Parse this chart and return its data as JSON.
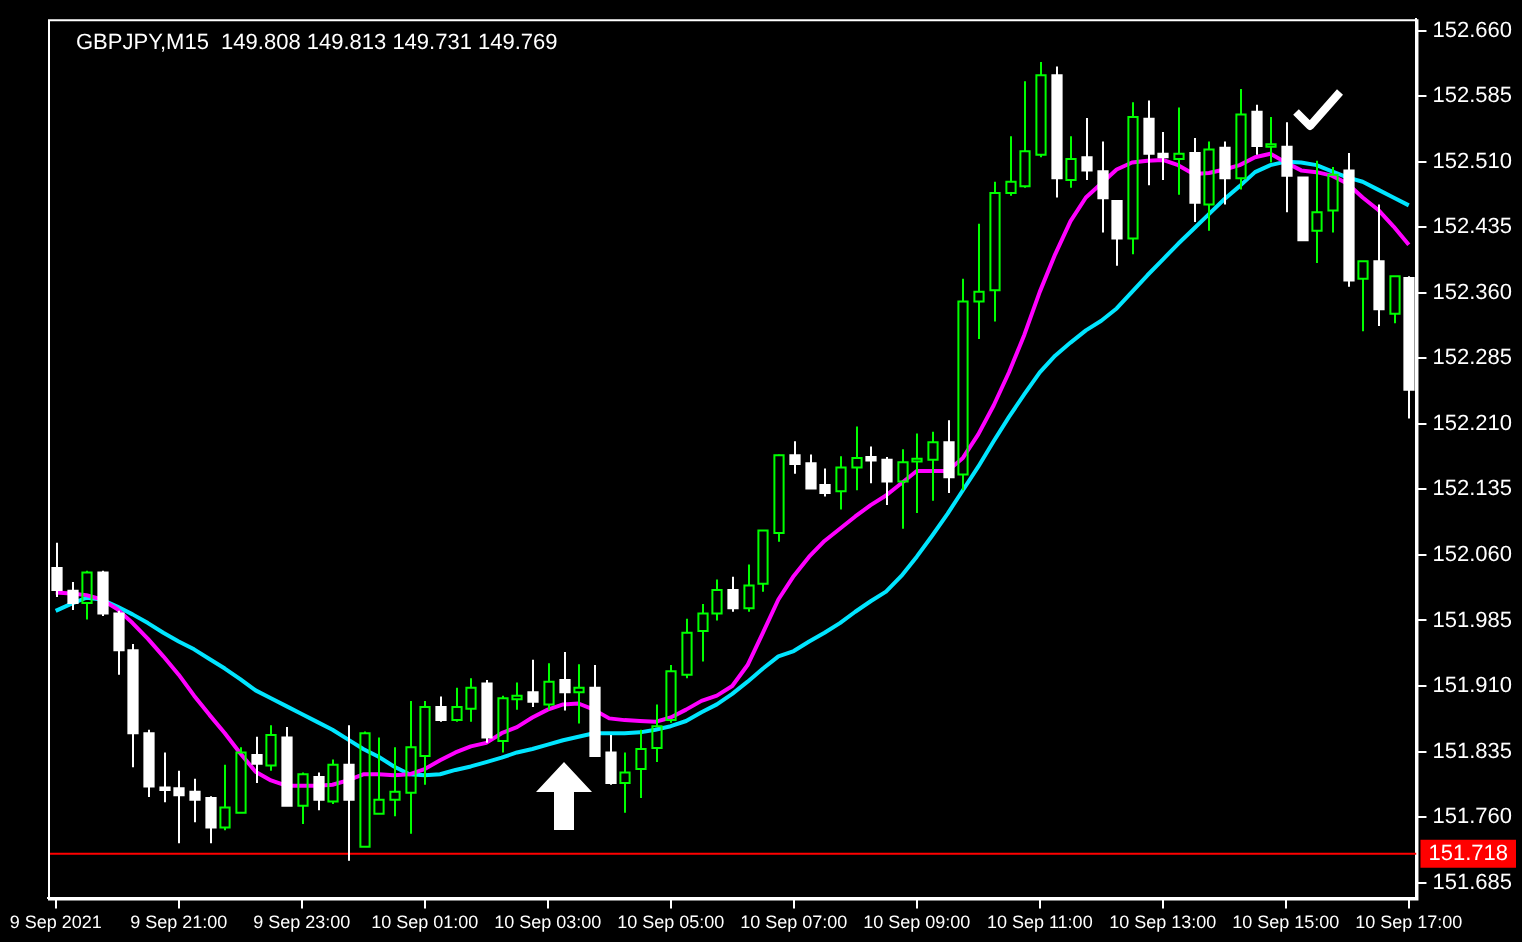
{
  "chart_data": {
    "type": "candlestick",
    "title": "GBPJPY,M15  149.808 149.813 149.731 149.769",
    "colors": [
      "#ffffff",
      "#ffffff",
      "#00ff00",
      "#ffffff",
      "#ffffff",
      "#ffffff",
      "#ffffff",
      "#ffffff",
      "#ffffff",
      "#ffffff",
      "#ffffff",
      "#00ff00",
      "#00ff00",
      "#ffffff",
      "#00ff00",
      "#ffffff",
      "#00ff00",
      "#ffffff",
      "#00ff00",
      "#ffffff",
      "#00ff00",
      "#00ff00",
      "#00ff00",
      "#00ff00",
      "#00ff00",
      "#ffffff",
      "#00ff00",
      "#00ff00",
      "#ffffff",
      "#00ff00",
      "#00ff00",
      "#ffffff",
      "#00ff00",
      "#ffffff",
      "#00ff00",
      "#ffffff",
      "#ffffff",
      "#00ff00",
      "#00ff00",
      "#00ff00",
      "#00ff00",
      "#00ff00",
      "#00ff00",
      "#00ff00",
      "#ffffff",
      "#00ff00",
      "#00ff00",
      "#00ff00",
      "#ffffff",
      "#ffffff",
      "#ffffff",
      "#00ff00",
      "#00ff00",
      "#ffffff",
      "#ffffff",
      "#00ff00",
      "#00ff00",
      "#00ff00",
      "#ffffff",
      "#00ff00",
      "#00ff00",
      "#00ff00",
      "#00ff00",
      "#00ff00",
      "#00ff00",
      "#ffffff",
      "#00ff00",
      "#ffffff",
      "#ffffff",
      "#ffffff",
      "#00ff00",
      "#ffffff",
      "#ffffff",
      "#00ff00",
      "#ffffff",
      "#00ff00",
      "#ffffff",
      "#00ff00",
      "#ffffff",
      "#00ff00",
      "#ffffff",
      "#ffffff",
      "#00ff00",
      "#00ff00",
      "#ffffff",
      "#00ff00",
      "#ffffff",
      "#00ff00",
      "#ffffff"
    ],
    "categories": [
      "9 Sep 2021",
      null,
      null,
      null,
      null,
      null,
      null,
      null,
      "9 Sep 21:00",
      null,
      null,
      null,
      null,
      null,
      null,
      null,
      "9 Sep 23:00",
      null,
      null,
      null,
      null,
      null,
      null,
      null,
      "10 Sep 01:00",
      null,
      null,
      null,
      null,
      null,
      null,
      null,
      "10 Sep 03:00",
      null,
      null,
      null,
      null,
      null,
      null,
      null,
      "10 Sep 05:00",
      null,
      null,
      null,
      null,
      null,
      null,
      null,
      "10 Sep 07:00",
      null,
      null,
      null,
      null,
      null,
      null,
      null,
      "10 Sep 09:00",
      null,
      null,
      null,
      null,
      null,
      null,
      null,
      "10 Sep 11:00",
      null,
      null,
      null,
      null,
      null,
      null,
      null,
      "10 Sep 13:00",
      null,
      null,
      null,
      null,
      null,
      null,
      null,
      "10 Sep 15:00",
      null,
      null,
      null,
      null,
      null,
      null,
      null,
      "10 Sep 17:00"
    ],
    "ohlc": [
      [
        152.045,
        152.074,
        152.012,
        152.02
      ],
      [
        152.019,
        152.029,
        151.997,
        152.005
      ],
      [
        152.005,
        152.042,
        151.986,
        152.04
      ],
      [
        152.04,
        152.042,
        151.99,
        151.993
      ],
      [
        151.993,
        151.996,
        151.923,
        151.951
      ],
      [
        151.951,
        151.958,
        151.817,
        151.856
      ],
      [
        151.856,
        151.86,
        151.783,
        151.795
      ],
      [
        151.794,
        151.834,
        151.777,
        151.791
      ],
      [
        151.793,
        151.813,
        151.73,
        151.785
      ],
      [
        151.789,
        151.804,
        151.754,
        151.78
      ],
      [
        151.782,
        151.784,
        151.73,
        151.748
      ],
      [
        151.748,
        151.82,
        151.745,
        151.771
      ],
      [
        151.765,
        151.84,
        151.765,
        151.834
      ],
      [
        151.831,
        151.852,
        151.799,
        151.821
      ],
      [
        151.819,
        151.865,
        151.813,
        151.854
      ],
      [
        151.851,
        151.863,
        151.773,
        151.773
      ],
      [
        151.773,
        151.811,
        151.752,
        151.809
      ],
      [
        151.806,
        151.811,
        151.768,
        151.78
      ],
      [
        151.778,
        151.826,
        151.775,
        151.82
      ],
      [
        151.82,
        151.865,
        151.71,
        151.78
      ],
      [
        151.726,
        151.858,
        151.726,
        151.856
      ],
      [
        151.764,
        151.851,
        151.764,
        151.78
      ],
      [
        151.78,
        151.84,
        151.761,
        151.789
      ],
      [
        151.788,
        151.893,
        151.741,
        151.84
      ],
      [
        151.83,
        151.893,
        151.797,
        151.886
      ],
      [
        151.886,
        151.898,
        151.869,
        151.871
      ],
      [
        151.871,
        151.908,
        151.869,
        151.886
      ],
      [
        151.884,
        151.919,
        151.869,
        151.908
      ],
      [
        151.913,
        151.917,
        151.845,
        151.851
      ],
      [
        151.847,
        151.899,
        151.834,
        151.896
      ],
      [
        151.895,
        151.914,
        151.883,
        151.899
      ],
      [
        151.903,
        151.94,
        151.886,
        151.892
      ],
      [
        151.889,
        151.936,
        151.883,
        151.915
      ],
      [
        151.917,
        151.949,
        151.882,
        151.903
      ],
      [
        151.903,
        151.935,
        151.867,
        151.908
      ],
      [
        151.908,
        151.934,
        151.83,
        151.83
      ],
      [
        151.834,
        151.854,
        151.797,
        151.799
      ],
      [
        151.799,
        151.834,
        151.765,
        151.811
      ],
      [
        151.815,
        151.86,
        151.782,
        151.838
      ],
      [
        151.839,
        151.889,
        151.823,
        151.864
      ],
      [
        151.871,
        151.934,
        151.868,
        151.927
      ],
      [
        151.923,
        151.987,
        151.919,
        151.971
      ],
      [
        151.973,
        152.004,
        151.938,
        151.993
      ],
      [
        151.993,
        152.032,
        151.985,
        152.02
      ],
      [
        152.02,
        152.035,
        151.995,
        151.999
      ],
      [
        151.999,
        152.049,
        151.995,
        152.025
      ],
      [
        152.027,
        152.088,
        152.018,
        152.088
      ],
      [
        152.085,
        152.175,
        152.075,
        152.174
      ],
      [
        152.174,
        152.19,
        152.153,
        152.164
      ],
      [
        152.165,
        152.175,
        152.136,
        152.136
      ],
      [
        152.14,
        152.159,
        152.127,
        152.131
      ],
      [
        152.133,
        152.173,
        152.112,
        152.16
      ],
      [
        152.16,
        152.207,
        152.134,
        152.171
      ],
      [
        152.172,
        152.184,
        152.142,
        152.168
      ],
      [
        152.169,
        152.172,
        152.117,
        152.144
      ],
      [
        152.144,
        152.181,
        152.09,
        152.166
      ],
      [
        152.167,
        152.199,
        152.108,
        152.17
      ],
      [
        152.169,
        152.201,
        152.122,
        152.189
      ],
      [
        152.189,
        152.214,
        152.131,
        152.149
      ],
      [
        152.152,
        152.376,
        152.134,
        152.35
      ],
      [
        152.35,
        152.439,
        152.307,
        152.361
      ],
      [
        152.363,
        152.487,
        152.327,
        152.474
      ],
      [
        152.474,
        152.539,
        152.471,
        152.487
      ],
      [
        152.482,
        152.602,
        152.48,
        152.522
      ],
      [
        152.518,
        152.624,
        152.515,
        152.609
      ],
      [
        152.609,
        152.619,
        152.469,
        152.491
      ],
      [
        152.489,
        152.539,
        152.48,
        152.513
      ],
      [
        152.515,
        152.56,
        152.489,
        152.5
      ],
      [
        152.499,
        152.533,
        152.429,
        152.468
      ],
      [
        152.465,
        152.465,
        152.391,
        152.422
      ],
      [
        152.422,
        152.578,
        152.404,
        152.561
      ],
      [
        152.559,
        152.58,
        152.483,
        152.519
      ],
      [
        152.519,
        152.544,
        152.489,
        152.515
      ],
      [
        152.513,
        152.572,
        152.472,
        152.519
      ],
      [
        152.52,
        152.537,
        152.441,
        152.463
      ],
      [
        152.461,
        152.533,
        152.431,
        152.524
      ],
      [
        152.526,
        152.533,
        152.461,
        152.491
      ],
      [
        152.491,
        152.593,
        152.478,
        152.564
      ],
      [
        152.567,
        152.575,
        152.518,
        152.528
      ],
      [
        152.527,
        152.561,
        152.509,
        152.53
      ],
      [
        152.527,
        152.555,
        152.452,
        152.494
      ],
      [
        152.492,
        152.492,
        152.42,
        152.42
      ],
      [
        152.431,
        152.511,
        152.394,
        152.452
      ],
      [
        152.454,
        152.504,
        152.429,
        152.495
      ],
      [
        152.5,
        152.52,
        152.367,
        152.374
      ],
      [
        152.376,
        152.396,
        152.316,
        152.396
      ],
      [
        152.396,
        152.461,
        152.322,
        152.341
      ],
      [
        152.336,
        152.379,
        152.325,
        152.379
      ],
      [
        152.377,
        152.379,
        152.216,
        152.249
      ]
    ],
    "series": [
      {
        "type": "line",
        "color": "#ff00ff",
        "values": [
          152.017,
          152.016,
          152.014,
          152.009,
          151.998,
          151.982,
          151.964,
          151.944,
          151.923,
          151.899,
          151.877,
          151.856,
          151.833,
          151.812,
          151.802,
          151.796,
          151.796,
          151.796,
          151.797,
          151.802,
          151.809,
          151.809,
          151.808,
          151.809,
          151.815,
          151.825,
          151.834,
          151.841,
          151.845,
          151.856,
          151.863,
          151.874,
          151.883,
          151.889,
          151.89,
          151.883,
          151.873,
          151.871,
          151.87,
          151.869,
          151.874,
          151.883,
          151.893,
          151.899,
          151.91,
          151.934,
          151.971,
          152.009,
          152.036,
          152.058,
          152.076,
          152.09,
          152.104,
          152.117,
          152.128,
          152.142,
          152.156,
          152.156,
          152.156,
          152.171,
          152.198,
          152.231,
          152.269,
          152.312,
          152.361,
          152.404,
          152.442,
          152.469,
          152.485,
          152.501,
          152.509,
          152.511,
          152.512,
          152.506,
          152.496,
          152.497,
          152.501,
          152.506,
          152.515,
          152.519,
          152.509,
          152.5,
          152.498,
          152.494,
          152.485,
          152.469,
          152.455,
          152.436,
          152.415
        ]
      },
      {
        "type": "line",
        "color": "#00e5ff",
        "values": [
          151.996,
          152.004,
          152.011,
          152.009,
          152.001,
          151.992,
          151.982,
          151.971,
          151.961,
          151.952,
          151.941,
          151.93,
          151.918,
          151.905,
          151.896,
          151.887,
          151.878,
          151.869,
          151.86,
          151.849,
          151.838,
          151.829,
          151.818,
          151.809,
          151.808,
          151.809,
          151.814,
          151.818,
          151.823,
          151.828,
          151.834,
          151.838,
          151.843,
          151.848,
          151.852,
          151.856,
          151.856,
          151.856,
          151.857,
          151.86,
          151.864,
          151.87,
          151.88,
          151.889,
          151.901,
          151.915,
          151.93,
          151.944,
          151.95,
          151.961,
          151.971,
          151.982,
          151.995,
          152.007,
          152.018,
          152.036,
          152.058,
          152.082,
          152.107,
          152.134,
          152.161,
          152.19,
          152.218,
          152.244,
          152.269,
          152.288,
          152.303,
          152.317,
          152.328,
          152.342,
          152.361,
          152.38,
          152.398,
          152.416,
          152.433,
          152.45,
          152.467,
          152.482,
          152.498,
          152.506,
          152.51,
          152.509,
          152.506,
          152.499,
          152.492,
          152.487,
          152.478,
          152.469,
          152.46
        ]
      }
    ],
    "ylim": [
      151.667,
      152.673
    ],
    "yticks": [
      {
        "value": 152.66,
        "label": "152.660"
      },
      {
        "value": 152.585,
        "label": "152.585"
      },
      {
        "value": 152.51,
        "label": "152.510"
      },
      {
        "value": 152.435,
        "label": "152.435"
      },
      {
        "value": 152.36,
        "label": "152.360"
      },
      {
        "value": 152.285,
        "label": "152.285"
      },
      {
        "value": 152.21,
        "label": "152.210"
      },
      {
        "value": 152.135,
        "label": "152.135"
      },
      {
        "value": 152.06,
        "label": "152.060"
      },
      {
        "value": 151.985,
        "label": "151.985"
      },
      {
        "value": 151.91,
        "label": "151.910"
      },
      {
        "value": 151.835,
        "label": "151.835"
      },
      {
        "value": 151.76,
        "label": "151.760"
      },
      {
        "value": 151.685,
        "label": "151.685"
      }
    ],
    "ref_lines": [
      {
        "axis": "y",
        "value": 151.718,
        "label": "151.718",
        "color": "#ff0000"
      }
    ],
    "marker": "none"
  }
}
